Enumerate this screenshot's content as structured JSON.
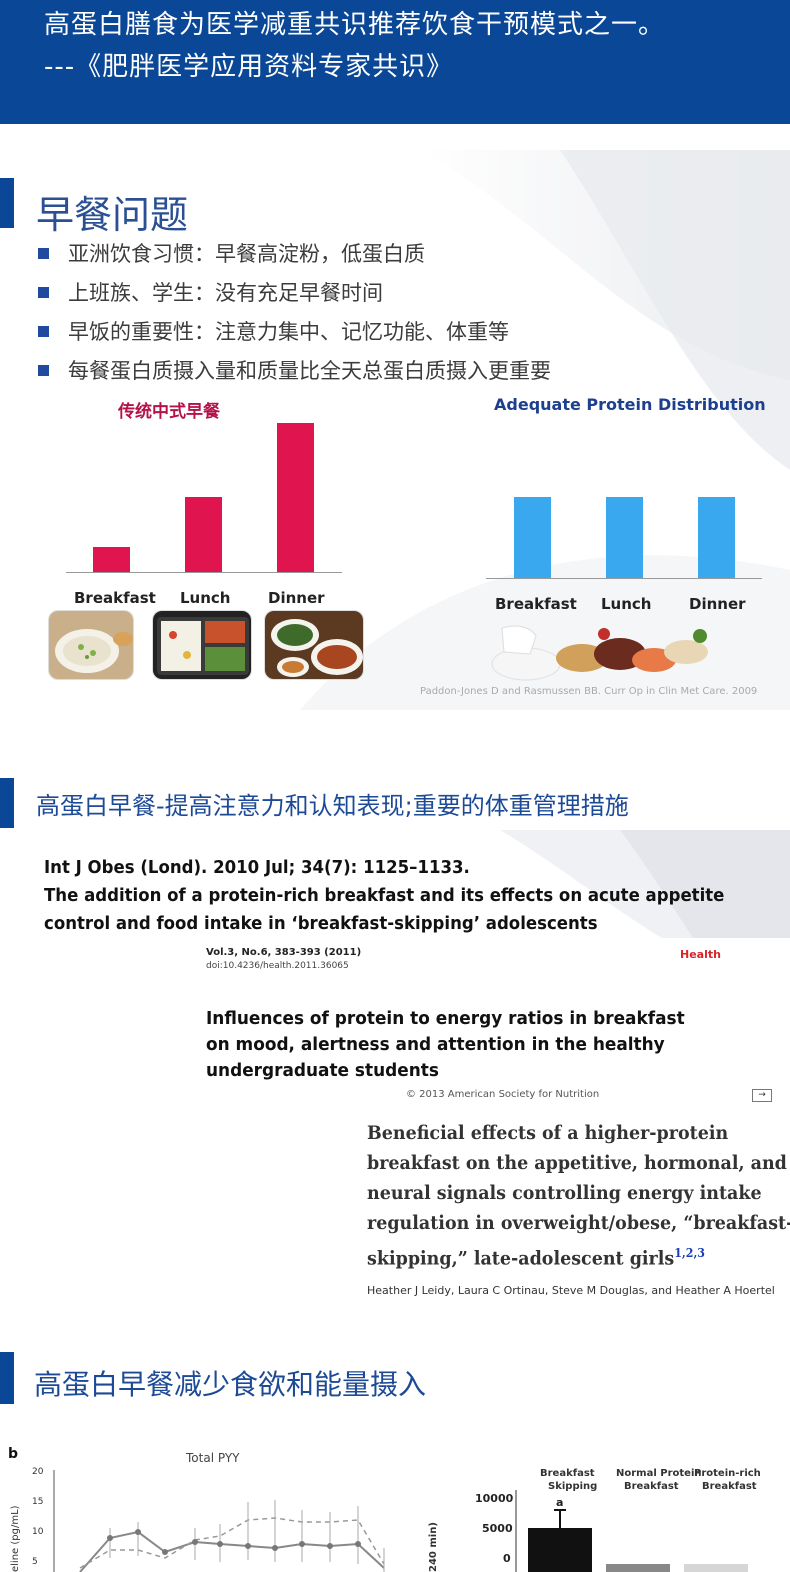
{
  "banner": {
    "line1": "高蛋白膳食为医学减重共识推荐饮食干预模式之一。",
    "line2": "---《肥胖医学应用资料专家共识》"
  },
  "breakfast_section": {
    "title": "早餐问题",
    "bullets": [
      "亚洲饮食习惯：早餐高淀粉，低蛋白质",
      "上班族、学生：没有充足早餐时间",
      "早饭的重要性：注意力集中、记忆功能、体重等",
      "每餐蛋白质摄入量和质量比全天总蛋白质摄入更重要"
    ],
    "citation": "Paddon-Jones D and Rasmussen BB. Curr Op in Clin Met Care. 2009"
  },
  "chart_data": [
    {
      "type": "bar",
      "title": "传统中式早餐",
      "categories": [
        "Breakfast",
        "Lunch",
        "Dinner"
      ],
      "values": [
        1,
        3,
        6
      ],
      "color": "#e0144f"
    },
    {
      "type": "bar",
      "title": "Adequate Protein Distribution",
      "categories": [
        "Breakfast",
        "Lunch",
        "Dinner"
      ],
      "values": [
        4,
        4,
        4
      ],
      "color": "#3aa8ee"
    },
    {
      "type": "line",
      "panel": "b",
      "title": "Total PYY",
      "ylabel": "eline (pg/mL)",
      "yticks": [
        "20",
        "15",
        "10",
        "5"
      ]
    },
    {
      "type": "bar",
      "ylabel": "240 min)",
      "yticks": [
        "10000",
        "5000",
        "0"
      ],
      "categories": [
        "Breakfast Skipping",
        "Normal Protein Breakfast",
        "Protein-rich Breakfast"
      ],
      "annotations": [
        "a"
      ]
    }
  ],
  "research_section": {
    "title": "高蛋白早餐-提高注意力和认知表现;重要的体重管理措施",
    "paper1": {
      "journal": "Int J Obes (Lond). 2010 Jul; 34(7): 1125–1133.",
      "title_l1": "The addition of a protein-rich breakfast and its effects on acute appetite",
      "title_l2": "control and food intake in ‘breakfast-skipping’ adolescents"
    },
    "paper2": {
      "vol": "Vol.3, No.6, 383-393 (2011)",
      "doi": "doi:10.4236/health.2011.36065",
      "journal": "Health",
      "title_l1": "Influences of protein to energy ratios in breakfast",
      "title_l2": "on mood, alertness and attention in the healthy",
      "title_l3": "undergraduate students"
    },
    "paper3": {
      "copyright": "© 2013 American Society for Nutrition",
      "title_l1": "Beneficial effects of a higher-protein",
      "title_l2": "breakfast on the appetitive, hormonal, and",
      "title_l3": "neural signals controlling energy intake",
      "title_l4": "regulation in overweight/obese, “breakfast-",
      "title_l5": "skipping,” late-adolescent girls",
      "refs": "1,2,3",
      "authors": "Heather J Leidy, Laura C Ortinau, Steve M Douglas, and Heather A Hoertel"
    }
  },
  "appetite_section": {
    "title": "高蛋白早餐减少食欲和能量摄入"
  }
}
